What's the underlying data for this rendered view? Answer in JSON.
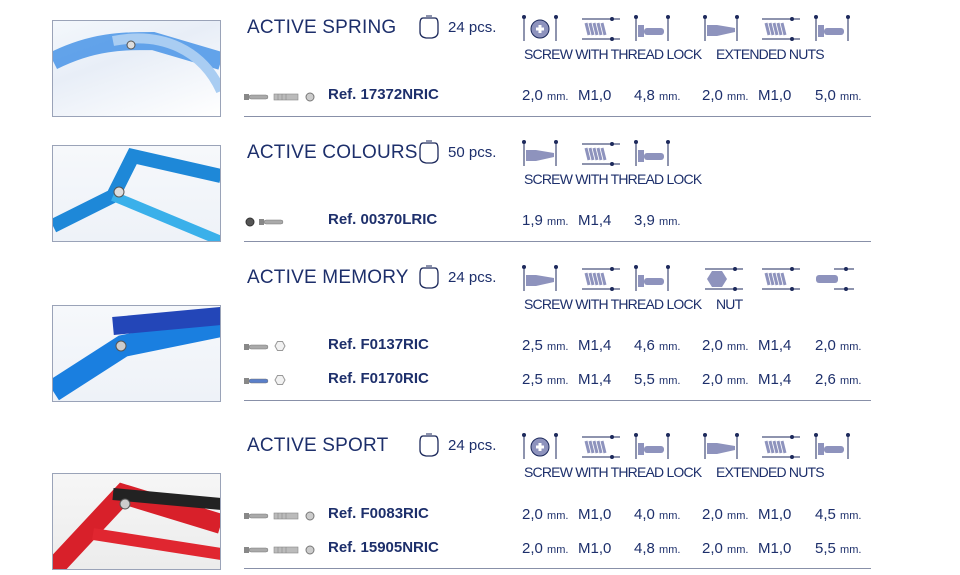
{
  "colors": {
    "text": "#1d2f6b",
    "icon_fill": "#8e93bd",
    "icon_dot": "#1d2a5c"
  },
  "sections": [
    {
      "title": "ACTIVE SPRING",
      "pcs": "24 pcs.",
      "photo": "spring",
      "icons": [
        "cross-head-screw-icon",
        "thread-lock-icon",
        "screw-length-icon",
        "flat-head-screw-icon",
        "thread-lock-icon",
        "screw-length-icon"
      ],
      "labels": [
        {
          "text": "SCREW WITH THREAD LOCK",
          "col": 0
        },
        {
          "text": "EXTENDED NUTS",
          "col": 3
        }
      ],
      "rows": [
        {
          "ref": "Ref. 17372NRIC",
          "parts": [
            "screw",
            "extended-nut",
            "washer"
          ],
          "values": [
            [
              "2,0",
              "mm."
            ],
            [
              "M1,0",
              ""
            ],
            [
              "4,8",
              "mm."
            ],
            [
              "2,0",
              "mm."
            ],
            [
              "M1,0",
              ""
            ],
            [
              "5,0",
              "mm."
            ]
          ]
        }
      ]
    },
    {
      "title": "ACTIVE COLOURS",
      "pcs": "50 pcs.",
      "photo": "colours",
      "icons": [
        "flat-head-screw-icon",
        "thread-lock-icon",
        "screw-length-icon"
      ],
      "labels": [
        {
          "text": "SCREW WITH THREAD LOCK",
          "col": 0
        }
      ],
      "rows": [
        {
          "ref": "Ref. 00370LRIC",
          "parts": [
            "washer-dark",
            "screw"
          ],
          "values": [
            [
              "1,9",
              "mm."
            ],
            [
              "M1,4",
              ""
            ],
            [
              "3,9",
              "mm."
            ]
          ]
        }
      ]
    },
    {
      "title": "ACTIVE MEMORY",
      "pcs": "24 pcs.",
      "photo": "memory",
      "icons": [
        "flat-head-screw-icon",
        "thread-lock-icon",
        "screw-length-icon",
        "hex-nut-icon",
        "thread-lock-icon",
        "nut-length-icon"
      ],
      "labels": [
        {
          "text": "SCREW WITH THREAD LOCK",
          "col": 0
        },
        {
          "text": "NUT",
          "col": 3
        }
      ],
      "rows": [
        {
          "ref": "Ref. F0137RIC",
          "parts": [
            "screw",
            "hex-nut"
          ],
          "values": [
            [
              "2,5",
              "mm."
            ],
            [
              "M1,4",
              ""
            ],
            [
              "4,6",
              "mm."
            ],
            [
              "2,0",
              "mm."
            ],
            [
              "M1,4",
              ""
            ],
            [
              "2,0",
              "mm."
            ]
          ]
        },
        {
          "ref": "Ref. F0170RIC",
          "parts": [
            "screw-blue",
            "hex-nut"
          ],
          "values": [
            [
              "2,5",
              "mm."
            ],
            [
              "M1,4",
              ""
            ],
            [
              "5,5",
              "mm."
            ],
            [
              "2,0",
              "mm."
            ],
            [
              "M1,4",
              ""
            ],
            [
              "2,6",
              "mm."
            ]
          ]
        }
      ]
    },
    {
      "title": "ACTIVE SPORT",
      "pcs": "24 pcs.",
      "photo": "sport",
      "icons": [
        "cross-head-screw-icon",
        "thread-lock-icon",
        "screw-length-icon",
        "flat-head-screw-icon",
        "thread-lock-icon",
        "screw-length-icon"
      ],
      "labels": [
        {
          "text": "SCREW WITH THREAD LOCK",
          "col": 0
        },
        {
          "text": "EXTENDED NUTS",
          "col": 3
        }
      ],
      "rows": [
        {
          "ref": "Ref. F0083RIC",
          "parts": [
            "screw",
            "extended-nut",
            "washer"
          ],
          "values": [
            [
              "2,0",
              "mm."
            ],
            [
              "M1,0",
              ""
            ],
            [
              "4,0",
              "mm."
            ],
            [
              "2,0",
              "mm."
            ],
            [
              "M1,0",
              ""
            ],
            [
              "4,5",
              "mm."
            ]
          ]
        },
        {
          "ref": "Ref. 15905NRIC",
          "parts": [
            "screw",
            "extended-nut",
            "washer"
          ],
          "values": [
            [
              "2,0",
              "mm."
            ],
            [
              "M1,0",
              ""
            ],
            [
              "4,8",
              "mm."
            ],
            [
              "2,0",
              "mm."
            ],
            [
              "M1,0",
              ""
            ],
            [
              "5,5",
              "mm."
            ]
          ]
        }
      ]
    }
  ]
}
